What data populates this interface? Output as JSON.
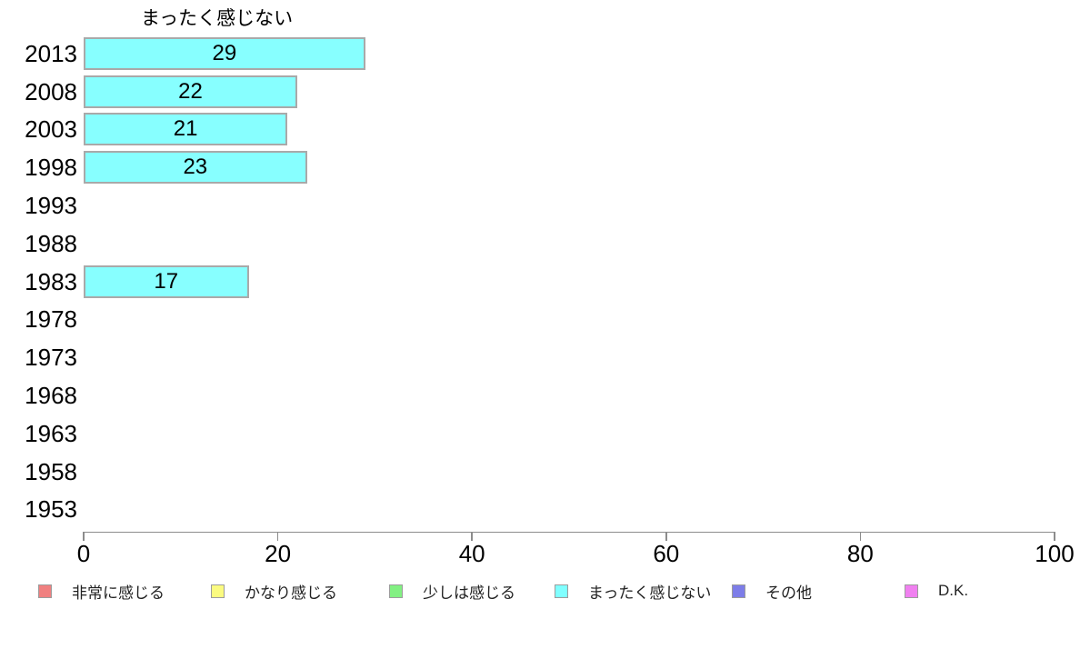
{
  "title": "まったく感じない",
  "chart_data": {
    "type": "bar",
    "orientation": "horizontal",
    "title": "まったく感じない",
    "categories": [
      "2013",
      "2008",
      "2003",
      "1998",
      "1993",
      "1988",
      "1983",
      "1978",
      "1973",
      "1968",
      "1963",
      "1958",
      "1953"
    ],
    "values": [
      29,
      22,
      21,
      23,
      null,
      null,
      17,
      null,
      null,
      null,
      null,
      null,
      null
    ],
    "value_labels": [
      "29",
      "22",
      "21",
      "23",
      "",
      "",
      "17",
      "",
      "",
      "",
      "",
      "",
      ""
    ],
    "xlabel": "",
    "ylabel": "",
    "xlim": [
      0,
      100
    ],
    "x_ticks": [
      0,
      20,
      40,
      60,
      80,
      100
    ],
    "x_tick_labels": [
      "0",
      "20",
      "40",
      "60",
      "80",
      "100"
    ],
    "grid": false,
    "bar_color": "#87ffff",
    "bar_border_color": "#a9a9a9",
    "legend_position": "bottom",
    "legend": [
      {
        "label": "非常に感じる",
        "color": "#f08080"
      },
      {
        "label": "かなり感じる",
        "color": "#fbfb80"
      },
      {
        "label": "少しは感じる",
        "color": "#82f082"
      },
      {
        "label": "まったく感じない",
        "color": "#80ffff"
      },
      {
        "label": "その他",
        "color": "#7d7de8"
      },
      {
        "label": "D.K.",
        "color": "#f080f0"
      }
    ]
  }
}
